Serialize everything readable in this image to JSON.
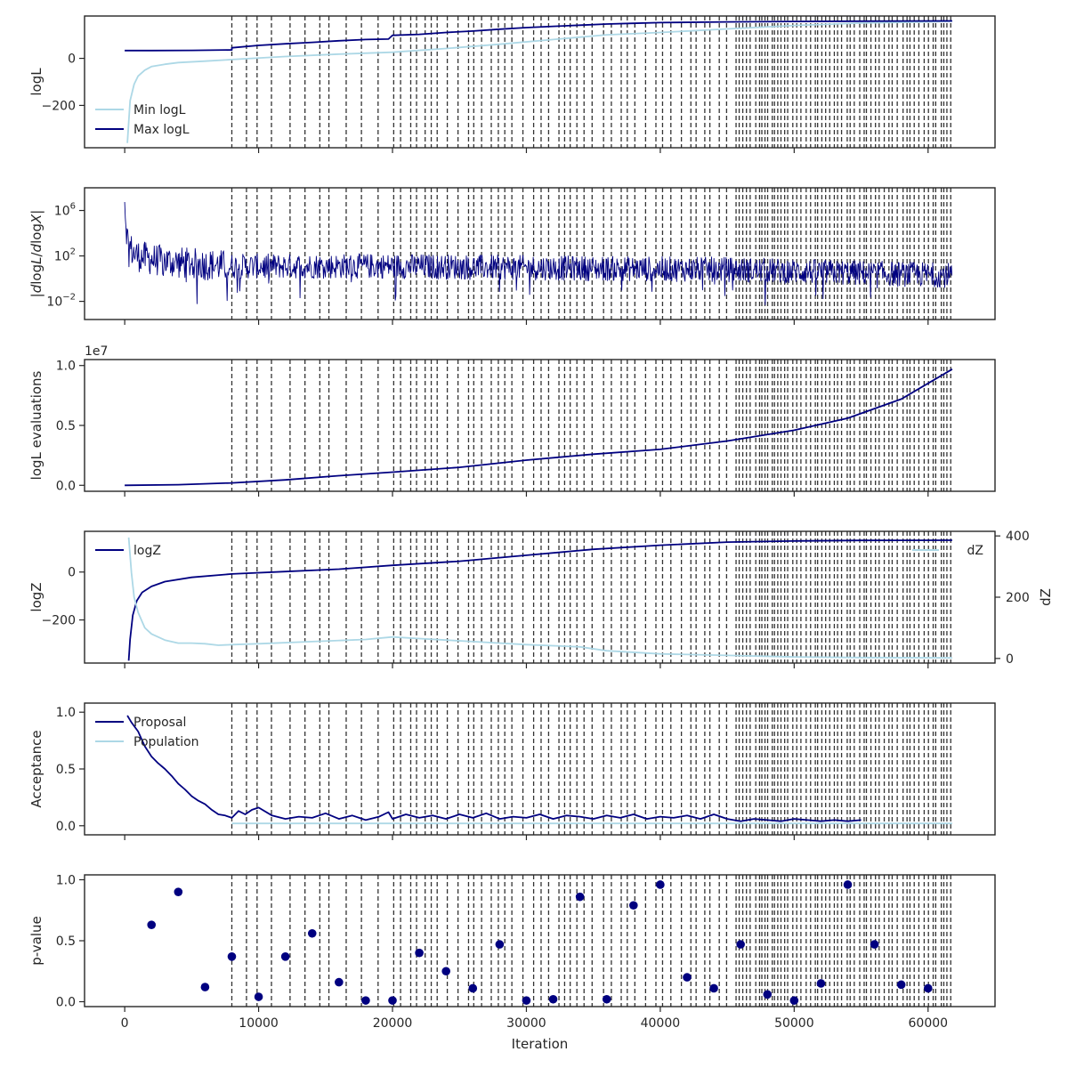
{
  "colors": {
    "dark": "#000080",
    "light": "#add8e6",
    "vline": "#333333",
    "frame": "#262626"
  },
  "shared_x": {
    "label": "Iteration",
    "ticks": [
      0,
      10000,
      20000,
      30000,
      40000,
      50000,
      60000
    ],
    "tick_labels": [
      "0",
      "10000",
      "20000",
      "30000",
      "40000",
      "50000",
      "60000"
    ],
    "xlim": [
      -3000,
      65000
    ]
  },
  "chart_data": [
    {
      "id": "logl",
      "type": "line",
      "ylabel": "logL",
      "ylim": [
        -380,
        180
      ],
      "yticks": [
        -200,
        0
      ],
      "ytick_labels": [
        "−200",
        "0"
      ],
      "legend": [
        "Min logL",
        "Max logL"
      ],
      "legend_position": "lower-left",
      "series": [
        {
          "name": "Min logL",
          "color": "light",
          "x": [
            200,
            400,
            700,
            1000,
            1500,
            2000,
            3000,
            4000,
            6000,
            8000,
            12000,
            16000,
            20000,
            24000,
            28000,
            32000,
            36000,
            40000,
            45000,
            50000,
            55000,
            60000,
            61800
          ],
          "y": [
            -360,
            -180,
            -110,
            -75,
            -50,
            -35,
            -25,
            -18,
            -12,
            -5,
            8,
            18,
            26,
            42,
            60,
            80,
            100,
            110,
            125,
            140,
            150,
            155,
            158
          ]
        },
        {
          "name": "Max logL",
          "color": "dark",
          "x": [
            0,
            2000,
            5000,
            7999,
            8000,
            10000,
            12000,
            14000,
            16000,
            18000,
            19700,
            20000,
            22000,
            24000,
            26000,
            28000,
            30000,
            32000,
            34000,
            36000,
            38000,
            40000,
            45000,
            50000,
            55000,
            61800
          ],
          "y": [
            33,
            33,
            34,
            36,
            45,
            55,
            62,
            68,
            75,
            80,
            82,
            98,
            102,
            110,
            116,
            124,
            131,
            136,
            141,
            146,
            149,
            152,
            155,
            157,
            158,
            159
          ]
        }
      ]
    },
    {
      "id": "dlogl",
      "type": "line",
      "ylabel": "|dlogL/dlogX|",
      "yscale": "log",
      "ylim": [
        -3.6,
        8
      ],
      "yticks": [
        6,
        2,
        -2
      ],
      "ytick_labels": [
        "10^6",
        "10^2",
        "10^-2"
      ],
      "series": [
        {
          "name": "",
          "color": "dark",
          "noise": true,
          "x": [
            0,
            100,
            300,
            600,
            1000,
            2000,
            4000,
            8000,
            20000,
            35000,
            45000,
            55000,
            61800
          ],
          "y": [
            7.2,
            4.5,
            3.0,
            2.3,
            2.0,
            1.7,
            1.4,
            1.1,
            1.1,
            0.9,
            0.8,
            0.5,
            0.3
          ]
        }
      ]
    },
    {
      "id": "evals",
      "type": "line",
      "ylabel": "logL evaluations",
      "offset_text": "1e7",
      "ylim": [
        -0.05,
        1.05
      ],
      "yticks": [
        0,
        0.5,
        1.0
      ],
      "ytick_labels": [
        "0.0",
        "0.5",
        "1.0"
      ],
      "series": [
        {
          "name": "",
          "color": "dark",
          "x": [
            0,
            4000,
            8000,
            12000,
            16000,
            20000,
            25000,
            30000,
            35000,
            40000,
            45000,
            50000,
            54000,
            58000,
            61800
          ],
          "y": [
            0.0,
            0.005,
            0.02,
            0.045,
            0.08,
            0.11,
            0.15,
            0.21,
            0.26,
            0.3,
            0.37,
            0.46,
            0.56,
            0.72,
            0.97
          ]
        }
      ]
    },
    {
      "id": "logz",
      "type": "line",
      "ylabel": "logZ",
      "y2label": "dZ",
      "ylim": [
        -380,
        170
      ],
      "yticks": [
        -200,
        0
      ],
      "ytick_labels": [
        "−200",
        "0"
      ],
      "y2lim": [
        -15,
        415
      ],
      "y2ticks": [
        0,
        200,
        400
      ],
      "y2tick_labels": [
        "0",
        "200",
        "400"
      ],
      "legend": [
        "logZ"
      ],
      "legend2": [
        "dZ"
      ],
      "series": [
        {
          "name": "logZ",
          "color": "dark",
          "axis": "left",
          "x": [
            300,
            400,
            600,
            900,
            1300,
            2000,
            3000,
            5000,
            8000,
            12000,
            16000,
            20000,
            25000,
            30000,
            35000,
            40000,
            45000,
            50000,
            55000,
            61800
          ],
          "y": [
            -370,
            -280,
            -180,
            -120,
            -85,
            -60,
            -40,
            -22,
            -8,
            2,
            12,
            28,
            45,
            70,
            95,
            112,
            125,
            130,
            132,
            133
          ]
        },
        {
          "name": "dZ",
          "color": "light",
          "axis": "right",
          "x": [
            300,
            500,
            700,
            1000,
            1500,
            2000,
            3000,
            4000,
            5000,
            6000,
            7000,
            8000,
            10000,
            14000,
            18000,
            20000,
            22000,
            24000,
            26000,
            30000,
            34000,
            36000,
            40000,
            45000,
            50000,
            55000,
            61800
          ],
          "y": [
            395,
            280,
            200,
            150,
            100,
            80,
            60,
            50,
            50,
            48,
            43,
            45,
            48,
            55,
            62,
            70,
            65,
            60,
            55,
            45,
            38,
            25,
            15,
            10,
            5,
            3,
            2
          ]
        }
      ]
    },
    {
      "id": "acceptance",
      "type": "line",
      "ylabel": "Acceptance",
      "ylim": [
        -0.08,
        1.08
      ],
      "yticks": [
        0,
        0.5,
        1.0
      ],
      "ytick_labels": [
        "0.0",
        "0.5",
        "1.0"
      ],
      "legend": [
        "Proposal",
        "Population"
      ],
      "series": [
        {
          "name": "Proposal",
          "color": "dark",
          "x": [
            200,
            500,
            1000,
            1500,
            2000,
            2500,
            3000,
            3500,
            4000,
            4500,
            5000,
            5500,
            6000,
            6500,
            7000,
            7500,
            8000,
            8500,
            9000,
            9500,
            10000,
            11000,
            12000,
            13000,
            14000,
            15000,
            16000,
            17000,
            18000,
            19000,
            19700,
            20000,
            21000,
            22000,
            23000,
            24000,
            25000,
            26000,
            27000,
            28000,
            29000,
            30000,
            31000,
            32000,
            33000,
            34000,
            35000,
            36000,
            37000,
            38000,
            39000,
            40000,
            41000,
            42000,
            43000,
            44000,
            45000,
            46000,
            47000,
            48000,
            49000,
            50000,
            51000,
            52000,
            53000,
            54000,
            55000
          ],
          "y": [
            0.97,
            0.91,
            0.83,
            0.7,
            0.61,
            0.55,
            0.5,
            0.44,
            0.37,
            0.32,
            0.26,
            0.22,
            0.19,
            0.14,
            0.1,
            0.09,
            0.07,
            0.13,
            0.1,
            0.14,
            0.16,
            0.09,
            0.06,
            0.08,
            0.07,
            0.11,
            0.06,
            0.09,
            0.05,
            0.08,
            0.12,
            0.06,
            0.1,
            0.07,
            0.09,
            0.06,
            0.1,
            0.07,
            0.11,
            0.06,
            0.08,
            0.07,
            0.1,
            0.06,
            0.09,
            0.08,
            0.06,
            0.09,
            0.07,
            0.1,
            0.06,
            0.08,
            0.07,
            0.09,
            0.06,
            0.1,
            0.06,
            0.04,
            0.06,
            0.05,
            0.04,
            0.06,
            0.05,
            0.04,
            0.05,
            0.04,
            0.05
          ]
        },
        {
          "name": "Population",
          "color": "light",
          "x": [
            8000,
            61800
          ],
          "y": [
            0.02,
            0.02
          ]
        }
      ]
    },
    {
      "id": "pvalue",
      "type": "scatter",
      "ylabel": "p-value",
      "xlabel": "Iteration",
      "ylim": [
        -0.04,
        1.04
      ],
      "yticks": [
        0,
        0.5,
        1.0
      ],
      "ytick_labels": [
        "0.0",
        "0.5",
        "1.0"
      ],
      "series": [
        {
          "name": "",
          "color": "dark",
          "x": [
            2000,
            4000,
            6000,
            8000,
            10000,
            12000,
            14000,
            16000,
            18000,
            20000,
            22000,
            24000,
            26000,
            28000,
            30000,
            32000,
            34000,
            36000,
            38000,
            40000,
            42000,
            44000,
            46000,
            48000,
            50000,
            52000,
            54000,
            56000,
            58000,
            60000
          ],
          "y": [
            0.63,
            0.9,
            0.12,
            0.37,
            0.04,
            0.37,
            0.56,
            0.16,
            0.01,
            0.01,
            0.4,
            0.25,
            0.11,
            0.47,
            0.01,
            0.02,
            0.86,
            0.02,
            0.79,
            0.96,
            0.2,
            0.11,
            0.47,
            0.06,
            0.01,
            0.15,
            0.96,
            0.47,
            0.14,
            0.11
          ]
        }
      ]
    }
  ]
}
